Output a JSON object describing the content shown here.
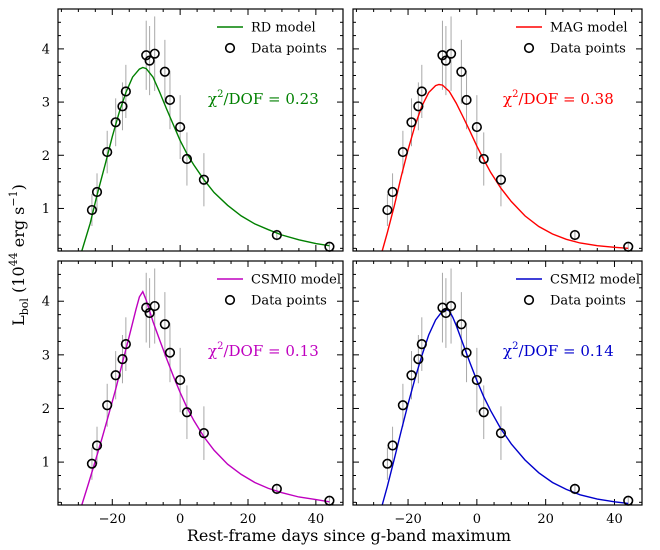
{
  "figure": {
    "xlabel": "Rest-frame days since g-band maximum",
    "ylabel": "L_bol (10^44 erg s^-1)",
    "ylabel_parts": {
      "main": "L",
      "sub": "bol",
      "mid": " (10",
      "sup": "44",
      "unit": " erg s",
      "unit_sup": "−1",
      "close": ")"
    }
  },
  "chart_data": [
    {
      "type": "line",
      "model_name": "RD model",
      "data_label": "Data points",
      "stat_text": "χ²/DOF = 0.23",
      "stat_parts": {
        "chi": "χ",
        "sup": "2",
        "rest": "/DOF = 0.23"
      },
      "color": "#008000",
      "xlim": [
        -36,
        48
      ],
      "ylim": [
        0.2,
        4.75
      ],
      "xticks": [
        -20,
        0,
        20,
        40
      ],
      "yticks": [
        1,
        2,
        3,
        4
      ],
      "model_curve": {
        "x": [
          -29,
          -26.5,
          -24.5,
          -22,
          -20,
          -18,
          -16,
          -14,
          -12,
          -11,
          -10,
          -8,
          -6,
          -4,
          -2,
          0,
          2,
          4,
          7,
          10,
          14,
          18,
          22,
          26,
          30,
          35,
          40,
          44
        ],
        "y": [
          0.2,
          0.72,
          1.25,
          1.85,
          2.35,
          2.8,
          3.18,
          3.47,
          3.62,
          3.65,
          3.63,
          3.47,
          3.18,
          2.87,
          2.57,
          2.28,
          2.03,
          1.82,
          1.54,
          1.3,
          1.06,
          0.86,
          0.71,
          0.6,
          0.5,
          0.41,
          0.34,
          0.3
        ]
      },
      "data_points": {
        "x": [
          -26,
          -24.5,
          -21.5,
          -19,
          -17,
          -16,
          -10,
          -9,
          -7.5,
          -4.5,
          -3,
          0,
          2,
          7,
          28.5,
          44
        ],
        "y": [
          0.97,
          1.31,
          2.06,
          2.62,
          2.92,
          3.2,
          3.88,
          3.78,
          3.91,
          3.57,
          3.04,
          2.53,
          1.93,
          1.54,
          0.5,
          0.28
        ],
        "err": [
          0.3,
          0.35,
          0.4,
          0.45,
          0.45,
          0.5,
          0.65,
          0.65,
          0.7,
          0.6,
          0.55,
          0.6,
          0.5,
          0.5,
          0.1,
          0.07
        ]
      }
    },
    {
      "type": "line",
      "model_name": "MAG model",
      "data_label": "Data points",
      "stat_text": "χ²/DOF = 0.38",
      "stat_parts": {
        "chi": "χ",
        "sup": "2",
        "rest": "/DOF = 0.38"
      },
      "color": "#ff0000",
      "xlim": [
        -36,
        48
      ],
      "ylim": [
        0.2,
        4.75
      ],
      "xticks": [
        -20,
        0,
        20,
        40
      ],
      "yticks": [
        1,
        2,
        3,
        4
      ],
      "model_curve": {
        "x": [
          -27.5,
          -26,
          -24,
          -22,
          -20,
          -18,
          -16,
          -14,
          -12,
          -11,
          -10,
          -8,
          -6,
          -4,
          -2,
          0,
          2,
          4,
          7,
          10,
          14,
          18,
          22,
          26,
          30,
          35,
          40,
          44
        ],
        "y": [
          0.2,
          0.55,
          1.05,
          1.6,
          2.1,
          2.55,
          2.92,
          3.18,
          3.31,
          3.33,
          3.32,
          3.2,
          2.98,
          2.72,
          2.45,
          2.17,
          1.92,
          1.68,
          1.38,
          1.13,
          0.86,
          0.66,
          0.52,
          0.42,
          0.35,
          0.3,
          0.27,
          0.25
        ]
      },
      "data_points": {
        "x": [
          -26,
          -24.5,
          -21.5,
          -19,
          -17,
          -16,
          -10,
          -9,
          -7.5,
          -4.5,
          -3,
          0,
          2,
          7,
          28.5,
          44
        ],
        "y": [
          0.97,
          1.31,
          2.06,
          2.62,
          2.92,
          3.2,
          3.88,
          3.78,
          3.91,
          3.57,
          3.04,
          2.53,
          1.93,
          1.54,
          0.5,
          0.28
        ],
        "err": [
          0.3,
          0.35,
          0.4,
          0.45,
          0.45,
          0.5,
          0.65,
          0.65,
          0.7,
          0.6,
          0.55,
          0.6,
          0.5,
          0.5,
          0.1,
          0.07
        ]
      }
    },
    {
      "type": "line",
      "model_name": "CSMI0 model",
      "data_label": "Data points",
      "stat_text": "χ²/DOF = 0.13",
      "stat_parts": {
        "chi": "χ",
        "sup": "2",
        "rest": "/DOF = 0.13"
      },
      "color": "#bf00bf",
      "xlim": [
        -36,
        48
      ],
      "ylim": [
        0.2,
        4.75
      ],
      "xticks": [
        -20,
        0,
        20,
        40
      ],
      "yticks": [
        1,
        2,
        3,
        4
      ],
      "model_curve": {
        "x": [
          -29,
          -27,
          -25,
          -23,
          -21,
          -19,
          -17,
          -15,
          -13,
          -12,
          -11,
          -10,
          -8,
          -6,
          -4,
          -2,
          0,
          2,
          4,
          7,
          10,
          14,
          18,
          22,
          26,
          30,
          35,
          40,
          44
        ],
        "y": [
          0.2,
          0.6,
          1.02,
          1.45,
          1.9,
          2.36,
          2.86,
          3.35,
          3.85,
          4.08,
          4.18,
          4.02,
          3.62,
          3.27,
          2.93,
          2.6,
          2.3,
          2.02,
          1.78,
          1.47,
          1.22,
          0.96,
          0.77,
          0.62,
          0.51,
          0.43,
          0.35,
          0.3,
          0.26
        ]
      },
      "data_points": {
        "x": [
          -26,
          -24.5,
          -21.5,
          -19,
          -17,
          -16,
          -10,
          -9,
          -7.5,
          -4.5,
          -3,
          0,
          2,
          7,
          28.5,
          44
        ],
        "y": [
          0.97,
          1.31,
          2.06,
          2.62,
          2.92,
          3.2,
          3.88,
          3.78,
          3.91,
          3.57,
          3.04,
          2.53,
          1.93,
          1.54,
          0.5,
          0.28
        ],
        "err": [
          0.3,
          0.35,
          0.4,
          0.45,
          0.45,
          0.5,
          0.65,
          0.65,
          0.7,
          0.6,
          0.55,
          0.6,
          0.5,
          0.5,
          0.1,
          0.07
        ]
      }
    },
    {
      "type": "line",
      "model_name": "CSMI2 model",
      "data_label": "Data points",
      "stat_text": "χ²/DOF = 0.14",
      "stat_parts": {
        "chi": "χ",
        "sup": "2",
        "rest": "/DOF = 0.14"
      },
      "color": "#0000cc",
      "xlim": [
        -36,
        48
      ],
      "ylim": [
        0.2,
        4.75
      ],
      "xticks": [
        -20,
        0,
        20,
        40
      ],
      "yticks": [
        1,
        2,
        3,
        4
      ],
      "model_curve": {
        "x": [
          -27.5,
          -26,
          -24,
          -22,
          -20,
          -18,
          -16,
          -14,
          -12,
          -10,
          -9,
          -8,
          -7,
          -6,
          -4,
          -2,
          0,
          2,
          4,
          7,
          10,
          14,
          18,
          22,
          26,
          30,
          35,
          40,
          44
        ],
        "y": [
          0.2,
          0.55,
          1.06,
          1.58,
          2.08,
          2.55,
          2.98,
          3.37,
          3.65,
          3.82,
          3.85,
          3.82,
          3.7,
          3.55,
          3.2,
          2.85,
          2.52,
          2.22,
          1.96,
          1.62,
          1.34,
          1.04,
          0.8,
          0.62,
          0.49,
          0.39,
          0.31,
          0.26,
          0.23
        ]
      },
      "data_points": {
        "x": [
          -26,
          -24.5,
          -21.5,
          -19,
          -17,
          -16,
          -10,
          -9,
          -7.5,
          -4.5,
          -3,
          0,
          2,
          7,
          28.5,
          44
        ],
        "y": [
          0.97,
          1.31,
          2.06,
          2.62,
          2.92,
          3.2,
          3.88,
          3.78,
          3.91,
          3.57,
          3.04,
          2.53,
          1.93,
          1.54,
          0.5,
          0.28
        ],
        "err": [
          0.3,
          0.35,
          0.4,
          0.45,
          0.45,
          0.5,
          0.65,
          0.65,
          0.7,
          0.6,
          0.55,
          0.6,
          0.5,
          0.5,
          0.1,
          0.07
        ]
      }
    }
  ]
}
